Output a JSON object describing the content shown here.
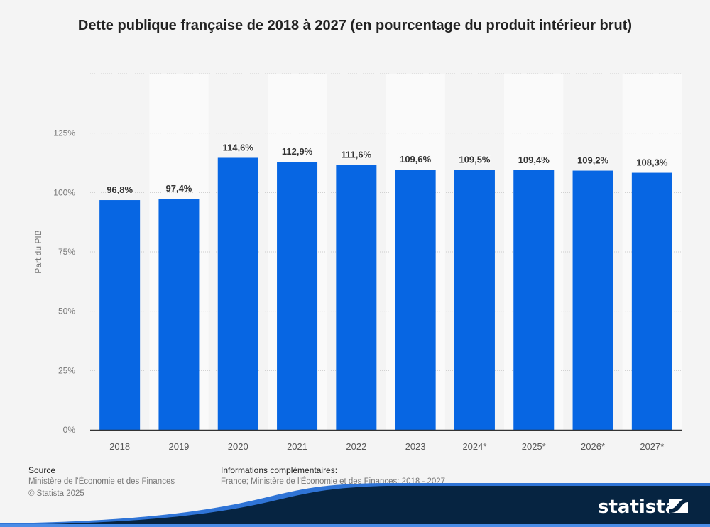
{
  "title": "Dette publique française de 2018 à 2027 (en pourcentage du produit intérieur brut)",
  "chart_data": {
    "type": "bar",
    "title": "Dette publique française de 2018 à 2027 (en pourcentage du produit intérieur brut)",
    "xlabel": "",
    "ylabel": "Part du PIB",
    "categories": [
      "2018",
      "2019",
      "2020",
      "2021",
      "2022",
      "2023",
      "2024*",
      "2025*",
      "2026*",
      "2027*"
    ],
    "values": [
      96.8,
      97.4,
      114.6,
      112.9,
      111.6,
      109.6,
      109.5,
      109.4,
      109.2,
      108.3
    ],
    "value_labels": [
      "96,8%",
      "97,4%",
      "114,6%",
      "112,9%",
      "111,6%",
      "109,6%",
      "109,5%",
      "109,4%",
      "109,2%",
      "108,3%"
    ],
    "ylim": [
      0,
      150
    ],
    "yticks": [
      0,
      25,
      50,
      75,
      100,
      125,
      150
    ],
    "ytick_labels": [
      "0%",
      "25%",
      "50%",
      "75%",
      "100%",
      "125%",
      ""
    ],
    "grid": true,
    "legend": "none",
    "bar_color": "#0766e3"
  },
  "footer": {
    "source_label": "Source",
    "source_lines": [
      "Ministère de l'Économie et des Finances",
      "© Statista 2025"
    ],
    "info_label": "Informations complémentaires:",
    "info_lines": [
      "France; Ministère de l'Économie et des Finances; 2018 - 2027"
    ]
  },
  "brand": {
    "name": "statista",
    "dark_color": "#062441",
    "accent_color": "#2f74d6"
  }
}
